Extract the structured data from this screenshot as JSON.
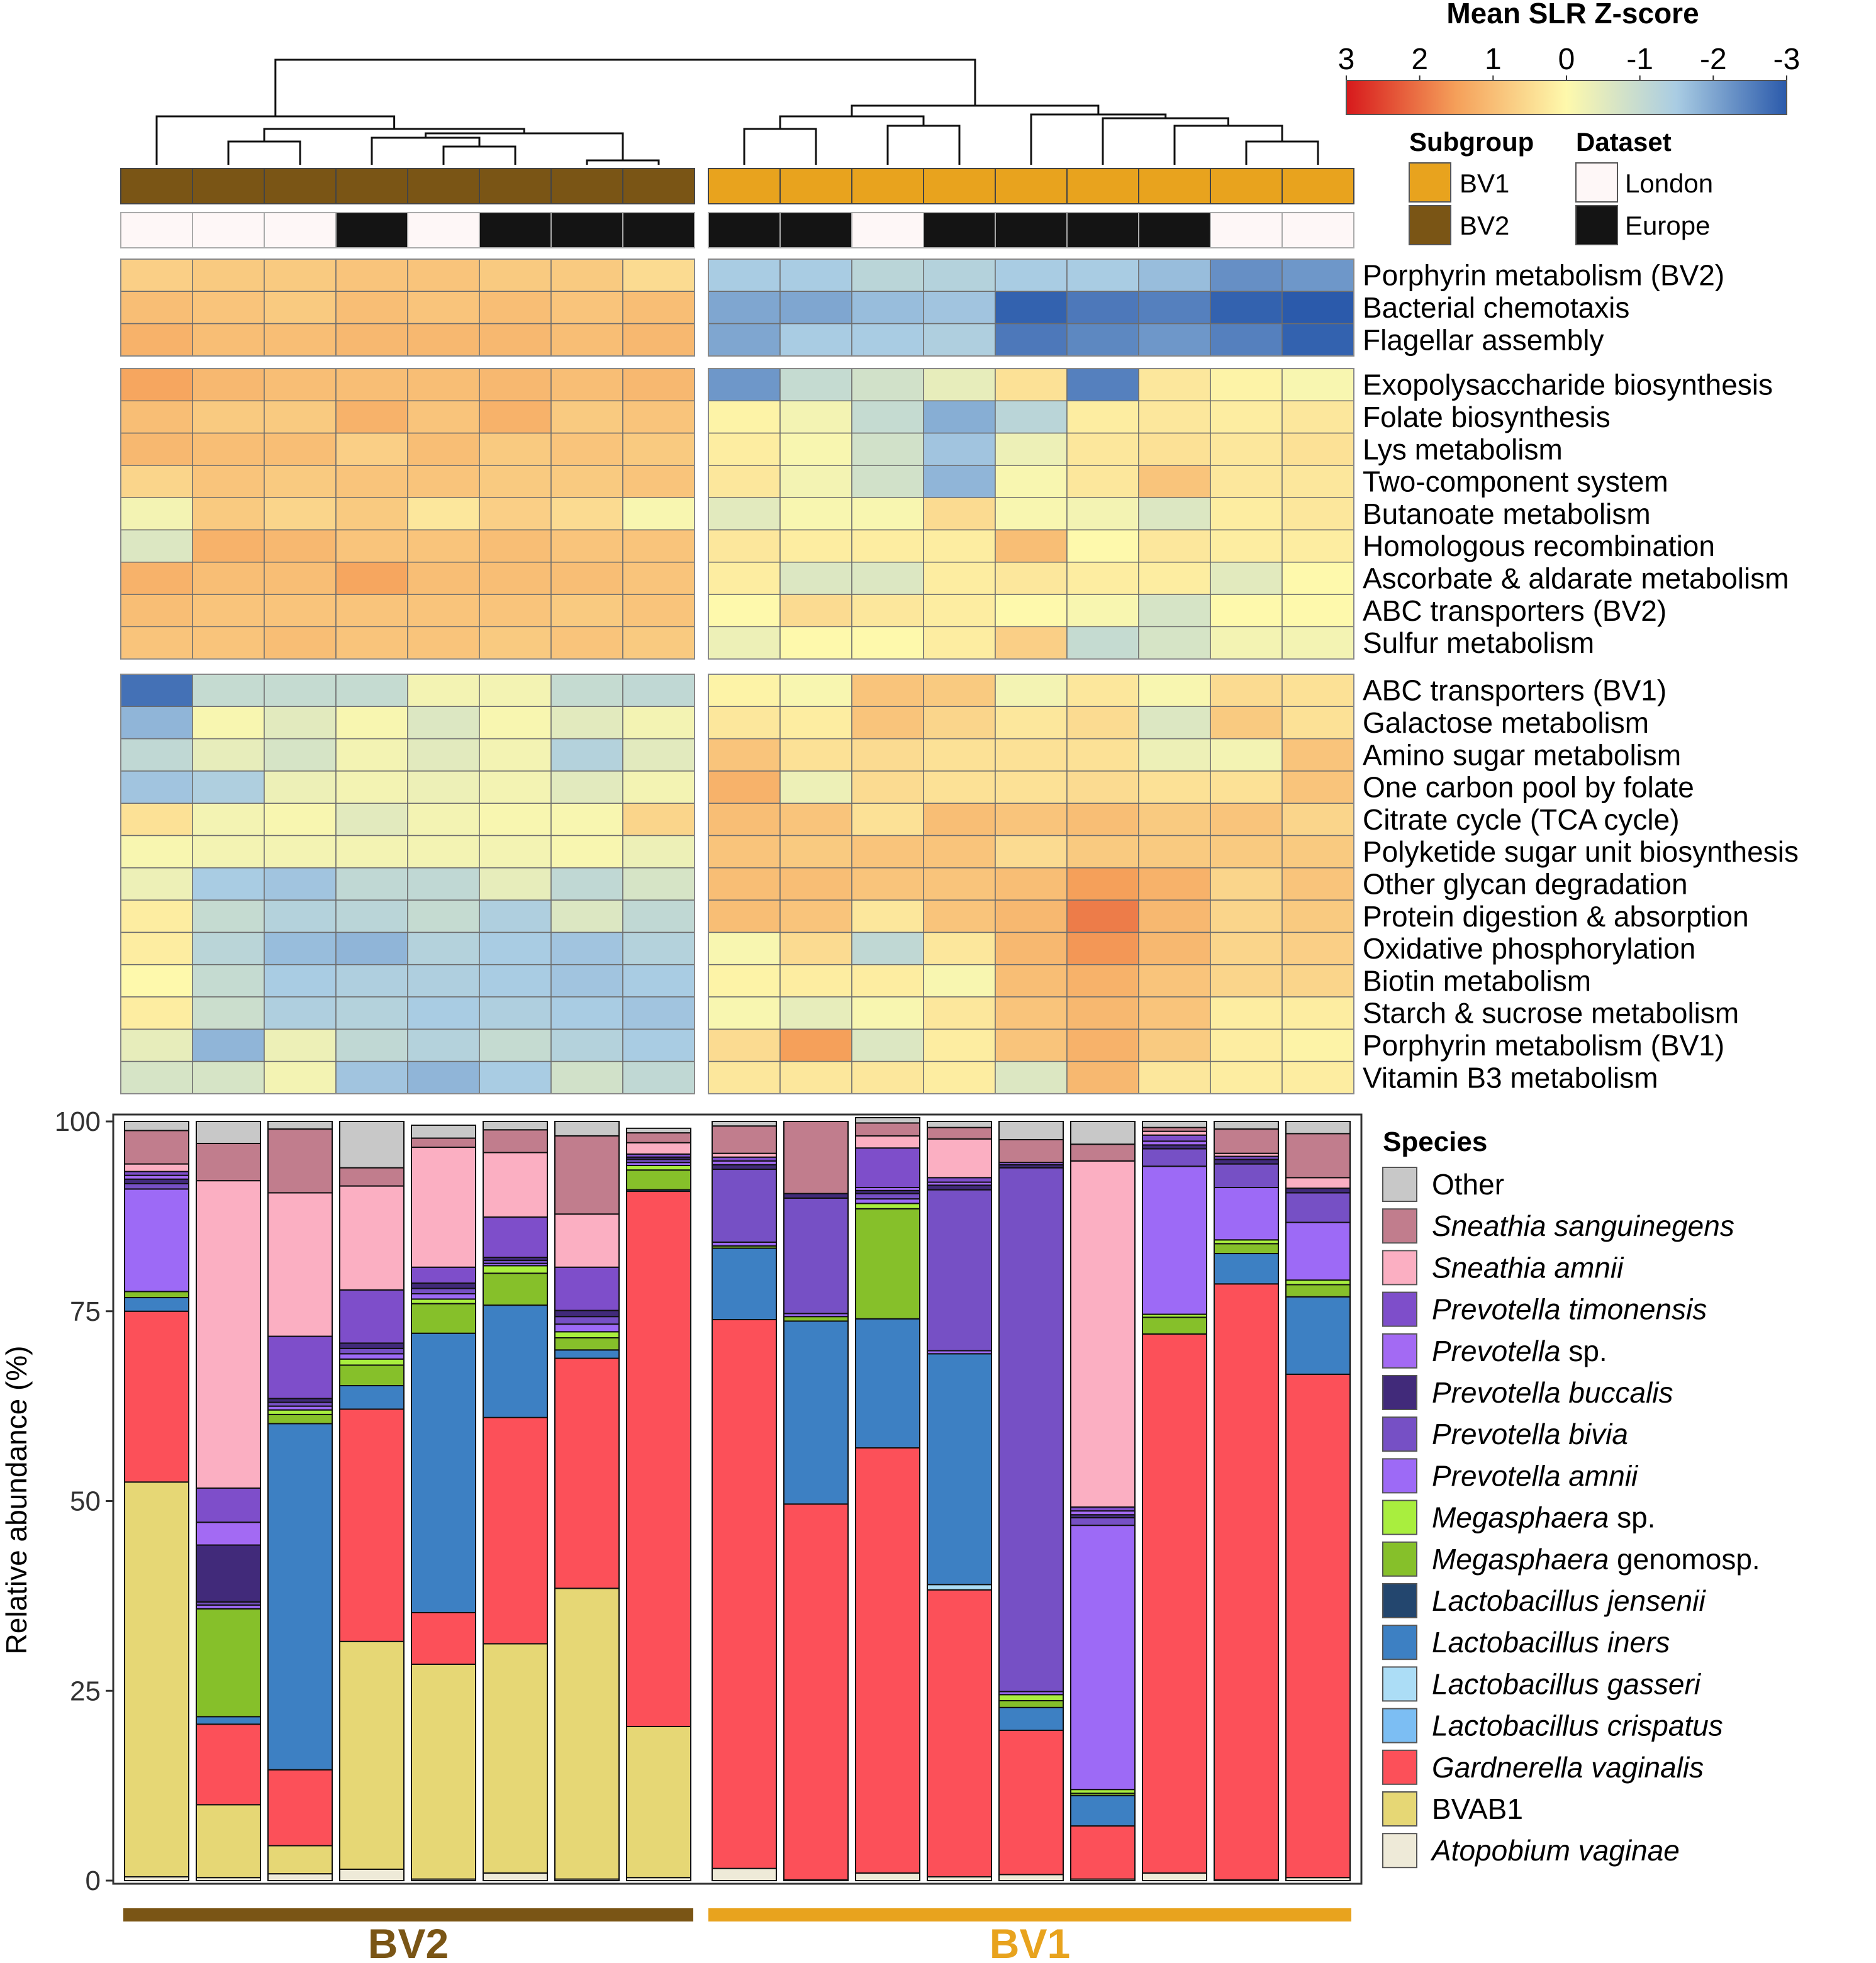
{
  "colors": {
    "bv1": "#E8A31E",
    "bv2": "#7A5515",
    "london": "#FEF7F7",
    "europe": "#141414",
    "scale": [
      "#D7191C",
      "#F5A05A",
      "#FEF9AC",
      "#A9CCE3",
      "#2B5AAB"
    ]
  },
  "legend": {
    "zscore_title": "Mean SLR Z-score",
    "zscore_ticks": [
      "3",
      "2",
      "1",
      "0",
      "-1",
      "-2",
      "-3"
    ],
    "subgroup_title": "Subgroup",
    "subgroup_items": [
      "BV1",
      "BV2"
    ],
    "dataset_title": "Dataset",
    "dataset_items": [
      "London",
      "Europe"
    ],
    "species_title": "Species"
  },
  "groups": {
    "bv2_label": "BV2",
    "bv1_label": "BV1"
  },
  "samples": {
    "subgroup": [
      "BV2",
      "BV2",
      "BV2",
      "BV2",
      "BV2",
      "BV2",
      "BV2",
      "BV2",
      "BV1",
      "BV1",
      "BV1",
      "BV1",
      "BV1",
      "BV1",
      "BV1",
      "BV1",
      "BV1"
    ],
    "dataset": [
      "London",
      "London",
      "London",
      "Europe",
      "London",
      "Europe",
      "Europe",
      "Europe",
      "Europe",
      "Europe",
      "London",
      "Europe",
      "Europe",
      "Europe",
      "Europe",
      "London",
      "London"
    ]
  },
  "heatmap": {
    "blocks": [
      {
        "rows": [
          "Porphyrin metabolism (BV2)",
          "Bacterial chemotaxis",
          "Flagellar assembly"
        ],
        "values": [
          [
            0.7,
            0.8,
            0.8,
            0.9,
            0.9,
            0.8,
            0.8,
            0.5,
            -1.5,
            -1.5,
            -1.2,
            -1.3,
            -1.5,
            -1.5,
            -1.7,
            -2.3,
            -2.2
          ],
          [
            1.0,
            0.9,
            0.8,
            1.0,
            0.9,
            1.0,
            0.9,
            1.0,
            -2.0,
            -2.0,
            -1.7,
            -1.6,
            -2.9,
            -2.6,
            -2.5,
            -2.9,
            -3.0
          ],
          [
            1.2,
            1.0,
            1.0,
            1.1,
            1.1,
            1.1,
            1.0,
            1.1,
            -2.0,
            -1.5,
            -1.5,
            -1.4,
            -2.6,
            -2.4,
            -2.2,
            -2.5,
            -2.9
          ]
        ]
      },
      {
        "rows": [
          "Exopolysaccharide biosynthesis",
          "Folate biosynthesis",
          "Lys metabolism",
          "Two-component system",
          "Butanoate metabolism",
          "Homologous recombination",
          "Ascorbate & aldarate metabolism",
          "ABC transporters (BV2)",
          "Sulfur metabolism"
        ],
        "values": [
          [
            1.4,
            1.1,
            1.0,
            1.0,
            1.0,
            1.1,
            1.0,
            1.1,
            -2.2,
            -1.0,
            -0.8,
            -0.4,
            0.4,
            -2.5,
            0.3,
            0.1,
            -0.1
          ],
          [
            1.0,
            0.8,
            0.8,
            1.2,
            0.9,
            1.2,
            0.8,
            0.9,
            0.1,
            -0.2,
            -1.0,
            -1.9,
            -1.2,
            0.2,
            0.3,
            0.2,
            0.3
          ],
          [
            1.1,
            1.0,
            1.0,
            0.7,
            1.0,
            0.8,
            0.9,
            0.8,
            0.2,
            -0.1,
            -0.8,
            -1.6,
            -0.3,
            0.3,
            0.4,
            0.3,
            0.4
          ],
          [
            0.6,
            0.9,
            0.8,
            0.9,
            0.9,
            0.8,
            0.8,
            0.9,
            0.3,
            -0.2,
            -0.8,
            -1.8,
            -0.1,
            0.3,
            0.9,
            0.3,
            0.3
          ],
          [
            -0.2,
            0.8,
            0.6,
            0.8,
            0.3,
            0.7,
            0.5,
            -0.1,
            -0.5,
            -0.1,
            -0.1,
            0.5,
            -0.1,
            -0.2,
            -0.6,
            0.2,
            0.3
          ],
          [
            -0.6,
            1.2,
            1.1,
            0.9,
            0.9,
            1.0,
            0.9,
            0.9,
            0.3,
            0.2,
            0.2,
            0.2,
            1.0,
            0.0,
            0.3,
            0.2,
            0.2
          ],
          [
            1.2,
            1.0,
            1.0,
            1.4,
            1.0,
            1.0,
            1.0,
            0.9,
            0.2,
            -0.6,
            -0.6,
            0.2,
            0.3,
            0.2,
            0.2,
            -0.5,
            0.0
          ],
          [
            1.0,
            0.9,
            0.9,
            0.9,
            0.9,
            0.9,
            0.8,
            0.9,
            0.0,
            0.5,
            0.3,
            0.2,
            0.0,
            -0.1,
            -0.7,
            0.0,
            0.0
          ],
          [
            0.9,
            0.9,
            1.0,
            0.9,
            0.9,
            0.8,
            0.9,
            0.8,
            -0.3,
            0.0,
            0.0,
            0.2,
            0.7,
            -1.0,
            -0.7,
            -0.2,
            -0.2
          ]
        ]
      },
      {
        "rows": [
          "ABC transporters (BV1)",
          "Galactose metabolism",
          "Amino sugar metabolism",
          "One carbon pool by folate",
          "Citrate cycle (TCA cycle)",
          "Polyketide sugar unit biosynthesis",
          "Other glycan degradation",
          "Protein digestion & absorption",
          "Oxidative phosphorylation",
          "Biotin metabolism",
          "Starch & sucrose metabolism",
          "Porphyrin metabolism (BV1)",
          "Vitamin B3 metabolism"
        ],
        "values": [
          [
            -2.7,
            -1.0,
            -1.0,
            -1.0,
            -0.2,
            -0.2,
            -1.0,
            -1.1,
            0.1,
            -0.1,
            0.9,
            0.8,
            -0.2,
            0.3,
            -0.1,
            0.5,
            0.4
          ],
          [
            -1.8,
            -0.1,
            -0.5,
            -0.1,
            -0.6,
            -0.1,
            -0.5,
            -0.2,
            0.3,
            0.2,
            0.9,
            0.6,
            0.3,
            0.5,
            -0.6,
            0.8,
            0.4
          ],
          [
            -1.1,
            -0.4,
            -0.7,
            -0.2,
            -0.5,
            -0.2,
            -1.3,
            -0.5,
            0.9,
            0.4,
            0.5,
            0.4,
            0.4,
            0.4,
            -0.3,
            -0.2,
            0.9
          ],
          [
            -1.6,
            -1.4,
            -0.3,
            -0.2,
            -0.3,
            -0.2,
            -0.5,
            -0.2,
            1.2,
            -0.3,
            0.5,
            0.4,
            0.4,
            0.5,
            0.4,
            0.4,
            0.9
          ],
          [
            0.4,
            -0.2,
            -0.1,
            -0.5,
            -0.2,
            -0.1,
            -0.1,
            0.6,
            1.0,
            0.9,
            0.4,
            1.0,
            0.9,
            1.0,
            0.8,
            0.9,
            0.6
          ],
          [
            -0.1,
            -0.2,
            -0.2,
            -0.2,
            -0.2,
            -0.2,
            -0.1,
            -0.3,
            0.9,
            0.8,
            0.9,
            0.9,
            0.5,
            0.8,
            0.8,
            0.8,
            0.8
          ],
          [
            -0.3,
            -1.5,
            -1.6,
            -1.1,
            -1.1,
            -0.4,
            -1.1,
            -0.7,
            1.0,
            1.0,
            0.9,
            0.9,
            1.0,
            1.5,
            1.2,
            0.6,
            0.9
          ],
          [
            0.2,
            -1.0,
            -1.3,
            -1.2,
            -1.0,
            -1.4,
            -0.6,
            -1.1,
            1.0,
            0.9,
            0.3,
            0.9,
            1.1,
            1.9,
            1.1,
            0.6,
            0.8
          ],
          [
            0.2,
            -1.2,
            -1.7,
            -1.8,
            -1.3,
            -1.5,
            -1.6,
            -1.3,
            -0.1,
            0.5,
            -1.1,
            0.3,
            1.1,
            1.6,
            1.1,
            0.6,
            0.7
          ],
          [
            0.0,
            -1.0,
            -1.5,
            -1.4,
            -1.4,
            -1.5,
            -1.6,
            -1.5,
            0.1,
            0.2,
            0.2,
            -0.1,
            1.0,
            1.2,
            0.9,
            0.6,
            0.6
          ],
          [
            0.2,
            -0.9,
            -1.4,
            -1.3,
            -1.5,
            -1.4,
            -1.5,
            -1.6,
            -0.1,
            -0.4,
            -0.1,
            0.3,
            0.9,
            1.1,
            0.9,
            0.2,
            0.2
          ],
          [
            -0.4,
            -1.8,
            -0.3,
            -1.1,
            -1.3,
            -1.0,
            -1.3,
            -1.5,
            0.5,
            1.5,
            -0.6,
            0.2,
            0.9,
            1.2,
            0.8,
            0.2,
            0.1
          ],
          [
            -0.7,
            -0.7,
            -0.2,
            -1.6,
            -1.8,
            -1.5,
            -0.8,
            -1.1,
            0.3,
            0.3,
            0.3,
            0.2,
            -0.6,
            1.1,
            0.3,
            0.2,
            0.2
          ]
        ]
      }
    ]
  },
  "chart_data": {
    "type": "bar",
    "stacked": true,
    "ylabel": "Relative abundance (%)",
    "ylim": [
      0,
      100
    ],
    "yticks": [
      "100",
      "75",
      "50",
      "25",
      "0"
    ],
    "legend_placement": "right",
    "species": [
      {
        "name": "Atopobium vaginae",
        "italic": true,
        "color": "#EEEAD8"
      },
      {
        "name": "BVAB1",
        "italic": false,
        "color": "#E6D775"
      },
      {
        "name": "Gardnerella vaginalis",
        "italic": true,
        "color": "#FC5059"
      },
      {
        "name": "Lactobacillus crispatus",
        "italic": true,
        "color": "#7CBEF3"
      },
      {
        "name": "Lactobacillus gasseri",
        "italic": true,
        "color": "#ACDDF6"
      },
      {
        "name": "Lactobacillus iners",
        "italic": true,
        "color": "#3D80C3"
      },
      {
        "name": "Lactobacillus jensenii",
        "italic": true,
        "color": "#23466E"
      },
      {
        "name": "Megasphaera genomosp.",
        "italic_part": "Megasphaera",
        "plain_part": " genomosp.",
        "color": "#86C02A"
      },
      {
        "name": "Megasphaera sp.",
        "italic_part": "Megasphaera",
        "plain_part": " sp.",
        "color": "#A9EE3E"
      },
      {
        "name": "Prevotella amnii",
        "italic": true,
        "color": "#9D6AF6"
      },
      {
        "name": "Prevotella bivia",
        "italic": true,
        "color": "#7650C5"
      },
      {
        "name": "Prevotella buccalis",
        "italic": true,
        "color": "#412A7A"
      },
      {
        "name": "Prevotella sp.",
        "italic_part": "Prevotella",
        "plain_part": " sp.",
        "color": "#A36AF3"
      },
      {
        "name": "Prevotella timonensis",
        "italic": true,
        "color": "#7E4ECA"
      },
      {
        "name": "Sneathia amnii",
        "italic": true,
        "color": "#FBAFC2"
      },
      {
        "name": "Sneathia sanguinegens",
        "italic": true,
        "color": "#C17D8D"
      },
      {
        "name": "Other",
        "italic": false,
        "color": "#C8C8C8"
      }
    ],
    "bars": [
      [
        0.5,
        52,
        22.5,
        0,
        0,
        1.8,
        0,
        0.8,
        0,
        13.5,
        0.7,
        0.6,
        0.5,
        0.5,
        1,
        4.4,
        1.2
      ],
      [
        0.4,
        9.6,
        10.6,
        0,
        0,
        1,
        0,
        14.2,
        0,
        0.5,
        0.4,
        7.5,
        3,
        4.5,
        40.5,
        4.9,
        2.9
      ],
      [
        0.9,
        3.7,
        10,
        0,
        0,
        45.6,
        0,
        1.2,
        0.6,
        0.5,
        0.5,
        0.5,
        0,
        8.2,
        18.9,
        8.4,
        1
      ],
      [
        1.5,
        30,
        30.6,
        0,
        0,
        3.1,
        0,
        2.7,
        0.8,
        0.7,
        0.7,
        0.7,
        0,
        7,
        13.7,
        2.4,
        6.1
      ],
      [
        0.2,
        28.3,
        6.8,
        0,
        0,
        36.8,
        0,
        3.9,
        0.6,
        0.7,
        0.7,
        0.7,
        0,
        2.1,
        15.8,
        1.2,
        1.7
      ],
      [
        1,
        30.2,
        29.8,
        0,
        0,
        14.8,
        0,
        4.2,
        1,
        0.3,
        0.4,
        0.4,
        0,
        5.3,
        8.5,
        3,
        1.1
      ],
      [
        0.2,
        38.3,
        30.3,
        0,
        0,
        1.1,
        0,
        1.6,
        0.8,
        1,
        1,
        0.8,
        0,
        5.7,
        7,
        10.3,
        1.9
      ],
      [
        0.4,
        19.9,
        70.5,
        0,
        0,
        0.2,
        0,
        2.6,
        0.6,
        0.4,
        0.4,
        0.3,
        0,
        0.4,
        1.5,
        1.3,
        0.6
      ],
      [
        1.6,
        0,
        72.3,
        0,
        0,
        9.4,
        0,
        0.3,
        0,
        0.5,
        9.6,
        0.6,
        0.5,
        0.5,
        0.5,
        3.6,
        0.6
      ],
      [
        0.1,
        0,
        49.5,
        0,
        0,
        24.1,
        0,
        0.6,
        0,
        0.4,
        15.2,
        0.6,
        0,
        0,
        0,
        9.5,
        0
      ],
      [
        1,
        0,
        56,
        0,
        0,
        17,
        0,
        14.5,
        0.7,
        0.6,
        0.7,
        0.4,
        0.4,
        5.2,
        1.6,
        1.7,
        0.7
      ],
      [
        0.5,
        0,
        37.8,
        0,
        0.7,
        30.4,
        0,
        0,
        0,
        0.4,
        21.2,
        0.6,
        0.4,
        0.6,
        5.1,
        1.5,
        0.8
      ],
      [
        0.8,
        0,
        19,
        0,
        0,
        3,
        0,
        0.9,
        0.8,
        0.4,
        69,
        0.4,
        0.3,
        0,
        0,
        3,
        2.4
      ],
      [
        0.2,
        0,
        7,
        0,
        0,
        4,
        0,
        0.3,
        0.5,
        34.8,
        1,
        0.4,
        0.5,
        0.5,
        45.6,
        2.2,
        3
      ],
      [
        1,
        0,
        71,
        0,
        0,
        0,
        0,
        2.2,
        0.4,
        19.5,
        2.3,
        0.5,
        0.5,
        0.8,
        0.5,
        0.5,
        0.8
      ],
      [
        0.1,
        0,
        78.5,
        0,
        0,
        4,
        0,
        1.3,
        0.5,
        6.9,
        3.1,
        0.6,
        0,
        0.4,
        0.4,
        3.2,
        1
      ],
      [
        0.4,
        0,
        66.3,
        0,
        0,
        10.2,
        0,
        1.6,
        0.6,
        7.6,
        3.9,
        0.6,
        0,
        0,
        1.4,
        5.8,
        1.6
      ]
    ]
  }
}
